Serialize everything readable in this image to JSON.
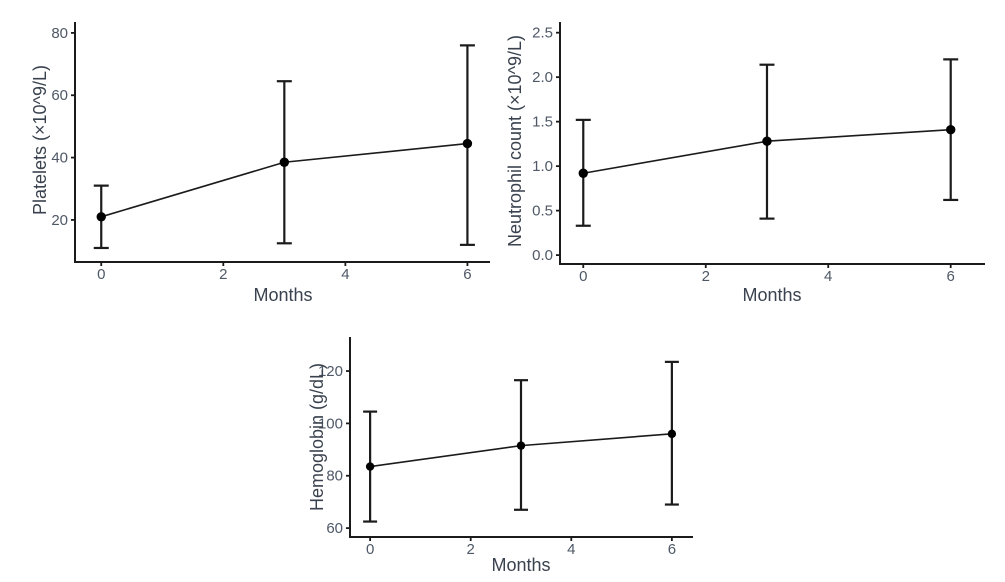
{
  "figure": {
    "background": "#ffffff"
  },
  "style": {
    "axis_color": "#1b1b1b",
    "tick_label_color": "#4e5866",
    "axis_title_color": "#39424e",
    "line_color": "#1b1b1b",
    "point_color": "#000000",
    "errorbar_color": "#1b1b1b"
  },
  "chart_data": [
    {
      "type": "line",
      "title": "",
      "xlabel": "Months",
      "ylabel": "Platelets (×10^9/L)",
      "x": [
        0,
        3,
        6
      ],
      "series": [
        {
          "name": "Platelets",
          "values": [
            21,
            38.5,
            44.5
          ],
          "err_low": [
            11,
            12.5,
            12
          ],
          "err_high": [
            31,
            64.5,
            76
          ]
        }
      ],
      "xticks": [
        0,
        2,
        4,
        6
      ],
      "xtick_labels": [
        "0",
        "2",
        "4",
        "6"
      ],
      "yticks": [
        20,
        40,
        60,
        80
      ],
      "ytick_labels": [
        "20",
        "40",
        "60",
        "80"
      ],
      "xlim": [
        -0.43,
        6.37
      ],
      "ylim": [
        6.5,
        83.5
      ],
      "grid": false,
      "legend": false,
      "error_bars": true
    },
    {
      "type": "line",
      "title": "",
      "xlabel": "Months",
      "ylabel": "Neutrophil count (×10^9/L)",
      "x": [
        0,
        3,
        6
      ],
      "series": [
        {
          "name": "Neutrophil count",
          "values": [
            0.92,
            1.28,
            1.41
          ],
          "err_low": [
            0.33,
            0.41,
            0.62
          ],
          "err_high": [
            1.52,
            2.14,
            2.2
          ]
        }
      ],
      "xticks": [
        0,
        2,
        4,
        6
      ],
      "xtick_labels": [
        "0",
        "2",
        "4",
        "6"
      ],
      "yticks": [
        0,
        0.5,
        1,
        1.5,
        2,
        2.5
      ],
      "ytick_labels": [
        "0.0",
        "0.5",
        "1.0",
        "1.5",
        "2.0",
        "2.5"
      ],
      "xlim": [
        -0.38,
        6.56
      ],
      "ylim": [
        -0.1,
        2.62
      ],
      "grid": false,
      "legend": false,
      "error_bars": true
    },
    {
      "type": "line",
      "title": "",
      "xlabel": "Months",
      "ylabel": "Hemoglobin (g/dL)",
      "x": [
        0,
        3,
        6
      ],
      "series": [
        {
          "name": "Hemoglobin",
          "values": [
            83.5,
            91.5,
            96
          ],
          "err_low": [
            62.5,
            67,
            69
          ],
          "err_high": [
            104.5,
            116.5,
            123.5
          ]
        }
      ],
      "xticks": [
        0,
        2,
        4,
        6
      ],
      "xtick_labels": [
        "0",
        "2",
        "4",
        "6"
      ],
      "yticks": [
        60,
        80,
        100,
        120
      ],
      "ytick_labels": [
        "60",
        "80",
        "100",
        "120"
      ],
      "xlim": [
        -0.4,
        6.42
      ],
      "ylim": [
        56.6,
        133
      ],
      "grid": false,
      "legend": false,
      "error_bars": true
    }
  ]
}
